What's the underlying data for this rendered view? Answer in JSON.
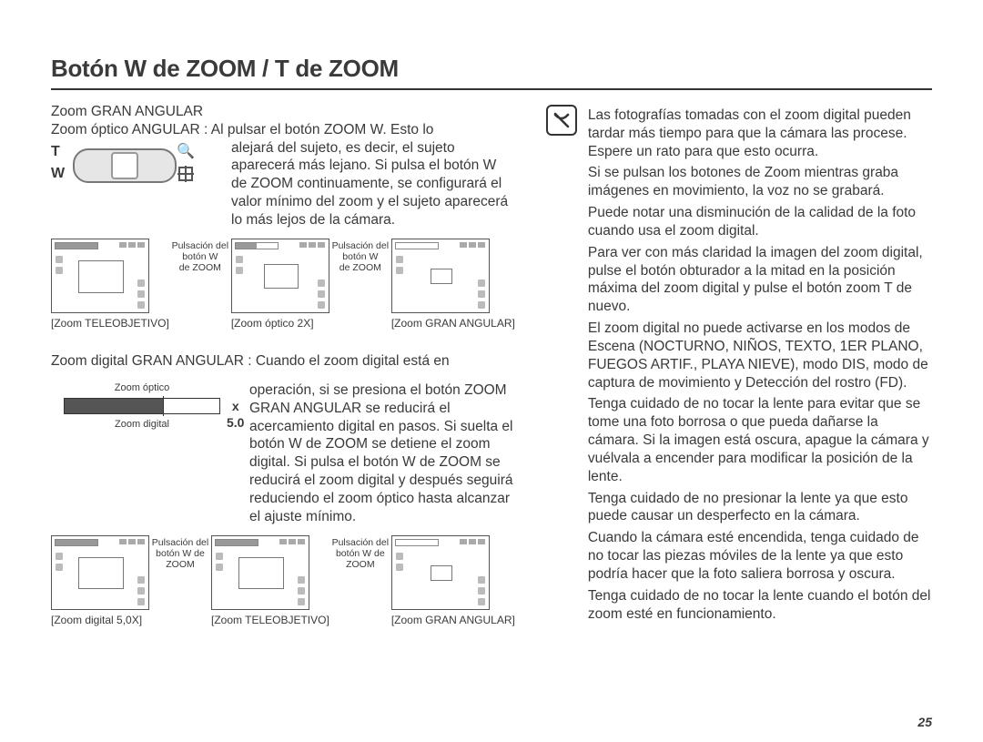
{
  "title": "Botón W de ZOOM / T de ZOOM",
  "page_number": "25",
  "left": {
    "sub1": {
      "heading": "Zoom GRAN ANGULAR",
      "line1": "Zoom óptico ANGULAR : Al pulsar el botón ZOOM W. Esto lo",
      "para": "alejará del sujeto, es decir, el sujeto aparecerá más lejano. Si pulsa el botón W de ZOOM continuamente, se conﬁgurará el valor mínimo del zoom y el sujeto aparecerá lo más lejos de la cámara.",
      "rocker": {
        "T": "T",
        "W": "W"
      },
      "thumbs": {
        "arrow_label": "Pulsación del\nbotón W\nde ZOOM",
        "captions": [
          "[Zoom TELEOBJETIVO]",
          "[Zoom óptico 2X]",
          "[Zoom GRAN ANGULAR]"
        ],
        "frame_sizes": [
          48,
          36,
          22
        ],
        "zoom_fill": [
          1.0,
          0.5,
          0.0
        ]
      }
    },
    "sub2": {
      "line1": "Zoom digital GRAN ANGULAR : Cuando el zoom digital está en",
      "para": "operación, si se presiona el botón ZOOM GRAN ANGULAR se reducirá el acercamiento digital en pasos. Si suelta el botón W de ZOOM se detiene el zoom digital. Si pulsa el botón W de ZOOM se reducirá el zoom digital y después seguirá reduciendo el zoom óptico hasta alcanzar el ajuste mínimo.",
      "scale": {
        "label_top": "Zoom óptico",
        "label_bottom": "Zoom digital",
        "x50": "x 5.0"
      },
      "thumbs": {
        "arrow_label": "Pulsación del\nbotón W de\nZOOM",
        "captions": [
          "[Zoom digital 5,0X]",
          "[Zoom TELEOBJETIVO]",
          "[Zoom GRAN ANGULAR]"
        ],
        "frame_sizes": [
          48,
          48,
          22
        ],
        "zoom_fill": [
          1.0,
          1.0,
          0.0
        ]
      }
    }
  },
  "right": {
    "bullets": [
      "Las fotografías tomadas con el zoom digital pueden tardar más tiempo para que la cámara las procese. Espere un rato para que esto ocurra.",
      "Si se pulsan los botones de Zoom mientras graba imágenes en movimiento, la voz no se grabará.",
      "Puede notar una disminución de la calidad de la foto cuando usa el zoom digital.",
      "Para ver con más claridad la imagen del zoom digital, pulse el botón obturador a la mitad en la posición máxima del zoom digital y pulse el botón zoom T de nuevo.",
      "El zoom digital no puede activarse en los modos de Escena (NOCTURNO, NIÑOS, TEXTO, 1ER PLANO, FUEGOS ARTIF., PLAYA NIEVE), modo DIS, modo de captura de movimiento y Detección del rostro (FD).",
      "Tenga cuidado de no tocar la lente para evitar que se tome una foto borrosa o que pueda dañarse la cámara. Si la imagen está oscura, apague la cámara y vuélvala a encender para modiﬁcar la posición de la lente.",
      "Tenga cuidado de no presionar la lente ya que esto puede causar un desperfecto en la cámara.",
      "Cuando la cámara esté encendida, tenga cuidado de no tocar las piezas móviles de la lente ya que esto podría hacer que la foto saliera borrosa y oscura.",
      "Tenga cuidado de no tocar la lente cuando el botón del zoom esté en funcionamiento."
    ]
  }
}
